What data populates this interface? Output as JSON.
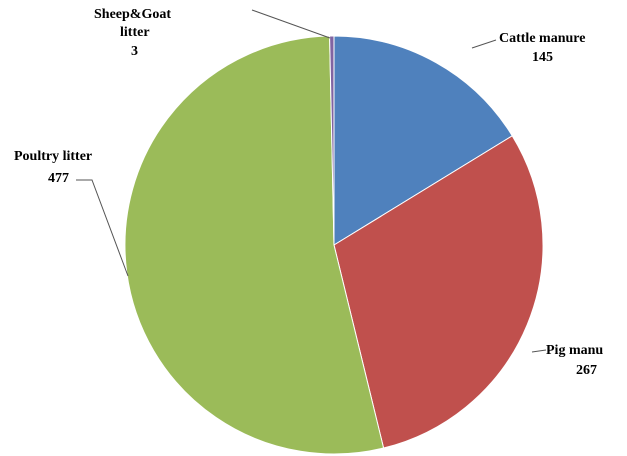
{
  "chart_data": {
    "type": "pie",
    "title": "",
    "start": "top",
    "direction": "clockwise",
    "legend": "none",
    "labels_position": "outside with leader lines",
    "slices": [
      {
        "label": "Cattle manure",
        "value": 145,
        "color": "#4F81BD"
      },
      {
        "label": "Pig manu",
        "value": 267,
        "color": "#C0504D"
      },
      {
        "label": "Poultry litter",
        "value": 477,
        "color": "#9BBB59"
      },
      {
        "label": "Sheep&Goat litter",
        "value": 3,
        "color": "#8064A2"
      }
    ]
  }
}
